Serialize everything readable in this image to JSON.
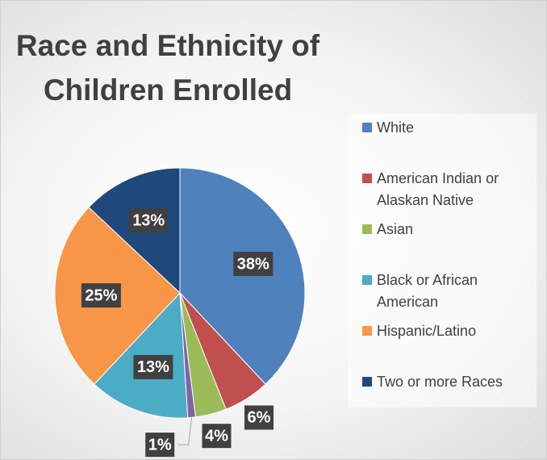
{
  "chart_data": {
    "type": "pie",
    "title": "Race and Ethnicity of Children Enrolled",
    "categories": [
      "White",
      "American Indian or Alaskan Native",
      "Asian",
      null,
      "Black or African American",
      "Hispanic/Latino",
      "Two or more Races"
    ],
    "values": [
      38,
      6,
      4,
      1,
      13,
      25,
      13
    ],
    "value_labels": [
      "38%",
      "6%",
      "4%",
      "1%",
      "13%",
      "25%",
      "13%"
    ],
    "colors": [
      "#4f81bd",
      "#c0504d",
      "#9bbb59",
      "#8064a2",
      "#4bacc6",
      "#f79646",
      "#1f497d"
    ],
    "legend": "right"
  }
}
